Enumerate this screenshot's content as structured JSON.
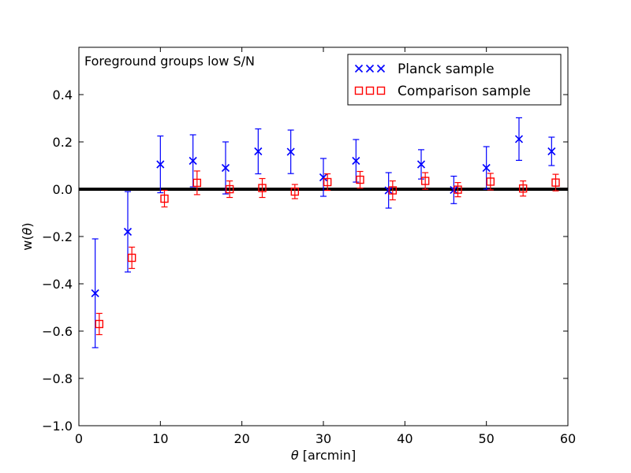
{
  "chart_data": {
    "type": "scatter",
    "title": "",
    "annotation": "Foreground groups low S/N",
    "xlabel_symbol": "θ",
    "xlabel_unit": " [arcmin]",
    "ylabel_prefix": "w(",
    "ylabel_symbol": "θ",
    "ylabel_suffix": ")",
    "xlim": [
      0,
      60
    ],
    "ylim": [
      -1.0,
      0.6
    ],
    "xticks": [
      0,
      10,
      20,
      30,
      40,
      50,
      60
    ],
    "yticks": [
      -1.0,
      -0.8,
      -0.6,
      -0.4,
      -0.2,
      0.0,
      0.2,
      0.4
    ],
    "ytick_labels": [
      "−1.0",
      "−0.8",
      "−0.6",
      "−0.4",
      "−0.2",
      "0.0",
      "0.2",
      "0.4"
    ],
    "reference_line_y": 0.0,
    "legend_position": "top-right",
    "series": [
      {
        "name": "Planck sample",
        "marker": "x",
        "color": "#0000ff",
        "x": [
          2,
          6,
          10,
          14,
          18,
          22,
          26,
          30,
          34,
          38,
          42,
          46,
          50,
          54,
          58
        ],
        "y": [
          -0.44,
          -0.18,
          0.105,
          0.12,
          0.09,
          0.16,
          0.158,
          0.05,
          0.12,
          -0.005,
          0.105,
          -0.003,
          0.09,
          0.212,
          0.16
        ],
        "err": [
          0.23,
          0.17,
          0.12,
          0.11,
          0.11,
          0.095,
          0.092,
          0.08,
          0.09,
          0.075,
          0.062,
          0.058,
          0.09,
          0.09,
          0.06
        ]
      },
      {
        "name": "Comparison sample",
        "marker": "s",
        "color": "#ff0000",
        "x": [
          2.5,
          6.5,
          10.5,
          14.5,
          18.5,
          22.5,
          26.5,
          30.5,
          34.5,
          38.5,
          42.5,
          46.5,
          50.5,
          54.5,
          58.5
        ],
        "y": [
          -0.57,
          -0.29,
          -0.04,
          0.027,
          0.0,
          0.005,
          -0.01,
          0.03,
          0.04,
          -0.005,
          0.035,
          -0.002,
          0.032,
          0.003,
          0.028
        ],
        "err": [
          0.045,
          0.045,
          0.035,
          0.05,
          0.035,
          0.04,
          0.03,
          0.035,
          0.035,
          0.04,
          0.035,
          0.03,
          0.035,
          0.032,
          0.035
        ]
      }
    ]
  }
}
